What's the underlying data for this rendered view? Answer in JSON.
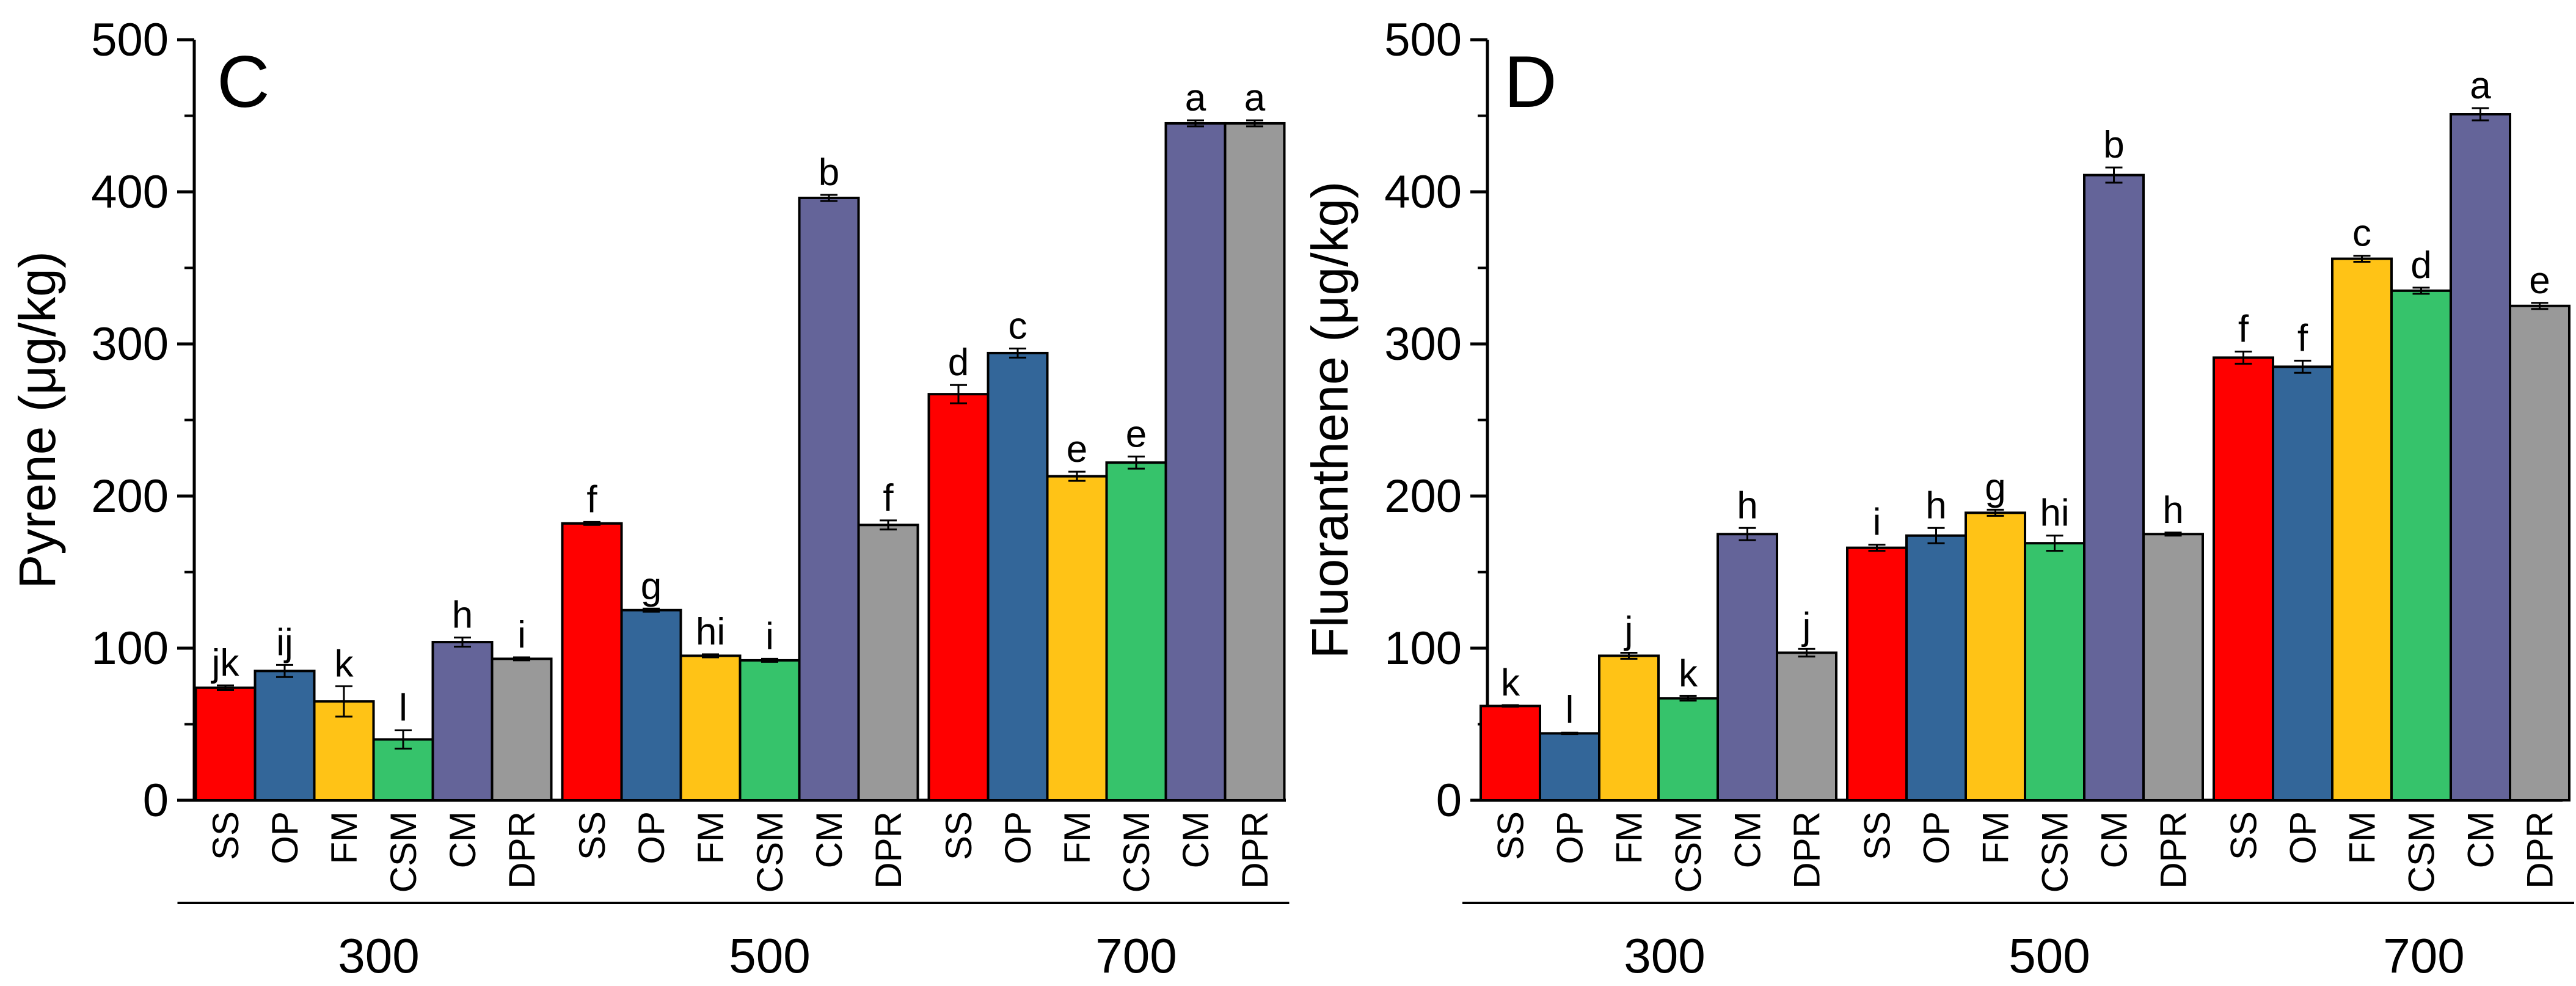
{
  "colors": {
    "SS": "#ff0000",
    "OP": "#336699",
    "FM": "#ffc316",
    "CSM": "#36c36b",
    "CM": "#646499",
    "DPR": "#999999"
  },
  "chart_data": [
    {
      "type": "bar",
      "panel_label": "C",
      "ylabel": "Pyrene (μg/kg)",
      "ylim": [
        0,
        500
      ],
      "yticks": [
        0,
        100,
        200,
        300,
        400,
        500
      ],
      "grid": false,
      "categories": [
        "SS",
        "OP",
        "FM",
        "CSM",
        "CM",
        "DPR"
      ],
      "groups": [
        {
          "label": "300",
          "values": [
            74,
            85,
            65,
            40,
            104,
            93
          ],
          "errors": [
            1.5,
            4,
            10,
            6,
            3,
            1
          ],
          "letters": [
            "jk",
            "ij",
            "k",
            "l",
            "h",
            "i"
          ]
        },
        {
          "label": "500",
          "values": [
            182,
            125,
            95,
            92,
            396,
            181
          ],
          "errors": [
            1,
            1,
            1,
            1,
            2,
            3
          ],
          "letters": [
            "f",
            "g",
            "hi",
            "i",
            "b",
            "f"
          ]
        },
        {
          "label": "700",
          "values": [
            267,
            294,
            213,
            222,
            445,
            445
          ],
          "errors": [
            6,
            3,
            3,
            4,
            2,
            2
          ],
          "letters": [
            "d",
            "c",
            "e",
            "e",
            "a",
            "a"
          ]
        }
      ]
    },
    {
      "type": "bar",
      "panel_label": "D",
      "ylabel": "Fluoranthene (μg/kg)",
      "ylim": [
        0,
        500
      ],
      "yticks": [
        0,
        100,
        200,
        300,
        400,
        500
      ],
      "grid": false,
      "categories": [
        "SS",
        "OP",
        "FM",
        "CSM",
        "CM",
        "DPR"
      ],
      "groups": [
        {
          "label": "300",
          "values": [
            62,
            44,
            95,
            67,
            175,
            97
          ],
          "errors": [
            0.5,
            0.5,
            2,
            1.5,
            4,
            2.5
          ],
          "letters": [
            "k",
            "l",
            "j",
            "k",
            "h",
            "j"
          ]
        },
        {
          "label": "500",
          "values": [
            166,
            174,
            189,
            169,
            411,
            175
          ],
          "errors": [
            2,
            5,
            2,
            5,
            5,
            1
          ],
          "letters": [
            "i",
            "h",
            "g",
            "hi",
            "b",
            "h"
          ]
        },
        {
          "label": "700",
          "values": [
            291,
            285,
            356,
            335,
            451,
            325
          ],
          "errors": [
            4,
            4,
            2,
            2,
            4,
            2
          ],
          "letters": [
            "f",
            "f",
            "c",
            "d",
            "a",
            "e"
          ]
        }
      ]
    }
  ]
}
